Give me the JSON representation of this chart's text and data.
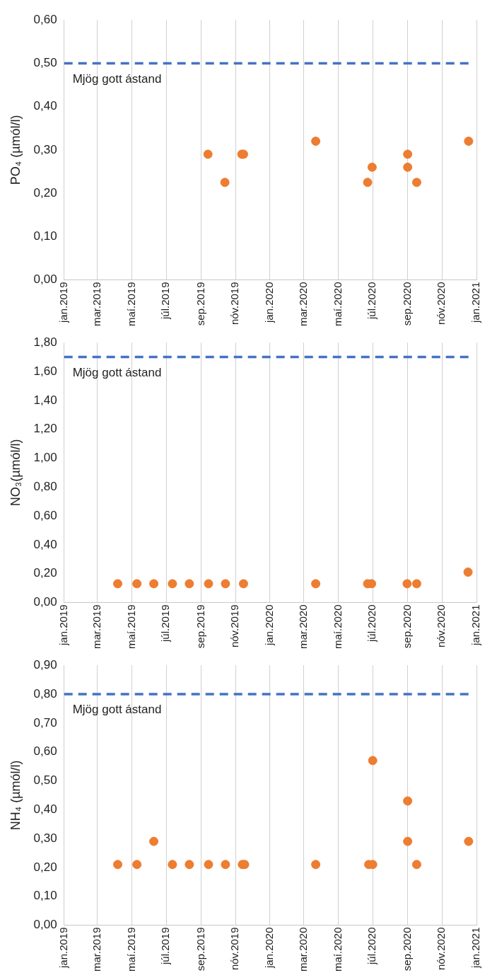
{
  "chart_data": [
    {
      "type": "scatter",
      "ylabel": "PO₄ (µmól/l)",
      "marker": "circle",
      "grid": "x",
      "xlim": [
        "2019-01-01",
        "2021-01-01"
      ],
      "xticks": [
        {
          "value": "2019-01-01",
          "label": "jan.2019"
        },
        {
          "value": "2019-03-01",
          "label": "mar.2019"
        },
        {
          "value": "2019-05-01",
          "label": "maí.2019"
        },
        {
          "value": "2019-07-01",
          "label": "júl.2019"
        },
        {
          "value": "2019-09-01",
          "label": "sep.2019"
        },
        {
          "value": "2019-11-01",
          "label": "nóv.2019"
        },
        {
          "value": "2020-01-01",
          "label": "jan.2020"
        },
        {
          "value": "2020-03-01",
          "label": "mar.2020"
        },
        {
          "value": "2020-05-01",
          "label": "maí.2020"
        },
        {
          "value": "2020-07-01",
          "label": "júl.2020"
        },
        {
          "value": "2020-09-01",
          "label": "sep.2020"
        },
        {
          "value": "2020-11-01",
          "label": "nóv.2020"
        },
        {
          "value": "2021-01-01",
          "label": "jan.2021"
        }
      ],
      "ylim": [
        0,
        0.6
      ],
      "yticks": [
        {
          "value": 0,
          "label": "0,00"
        },
        {
          "value": 0.1,
          "label": "0,10"
        },
        {
          "value": 0.2,
          "label": "0,20"
        },
        {
          "value": 0.3,
          "label": "0,30"
        },
        {
          "value": 0.4,
          "label": "0,40"
        },
        {
          "value": 0.5,
          "label": "0,50"
        },
        {
          "value": 0.6,
          "label": "0,60"
        }
      ],
      "ref_lines": [
        {
          "axis": "y",
          "value": 0.5,
          "label": "Mjög gott ástand",
          "color": "#4472c4",
          "line_style": "dashed"
        }
      ],
      "series": [
        {
          "color": "#ed7d31",
          "x": [
            "2019-09-13",
            "2019-10-13",
            "2019-11-12",
            "2019-11-15",
            "2020-03-22",
            "2020-06-22",
            "2020-06-30",
            "2020-09-01",
            "2020-09-01",
            "2020-09-17",
            "2020-12-18"
          ],
          "values": [
            0.29,
            0.225,
            0.29,
            0.29,
            0.32,
            0.225,
            0.26,
            0.29,
            0.26,
            0.225,
            0.32
          ]
        }
      ]
    },
    {
      "type": "scatter",
      "ylabel": "NO₃(µmól/l)",
      "marker": "circle",
      "grid": "x",
      "xlim": [
        "2019-01-01",
        "2021-01-01"
      ],
      "xticks": [
        {
          "value": "2019-01-01",
          "label": "jan.2019"
        },
        {
          "value": "2019-03-01",
          "label": "mar.2019"
        },
        {
          "value": "2019-05-01",
          "label": "maí.2019"
        },
        {
          "value": "2019-07-01",
          "label": "júl.2019"
        },
        {
          "value": "2019-09-01",
          "label": "sep.2019"
        },
        {
          "value": "2019-11-01",
          "label": "nóv.2019"
        },
        {
          "value": "2020-01-01",
          "label": "jan.2020"
        },
        {
          "value": "2020-03-01",
          "label": "mar.2020"
        },
        {
          "value": "2020-05-01",
          "label": "maí.2020"
        },
        {
          "value": "2020-07-01",
          "label": "júl.2020"
        },
        {
          "value": "2020-09-01",
          "label": "sep.2020"
        },
        {
          "value": "2020-11-01",
          "label": "nóv.2020"
        },
        {
          "value": "2021-01-01",
          "label": "jan.2021"
        }
      ],
      "ylim": [
        0,
        1.8
      ],
      "yticks": [
        {
          "value": 0,
          "label": "0,00"
        },
        {
          "value": 0.2,
          "label": "0,20"
        },
        {
          "value": 0.4,
          "label": "0,40"
        },
        {
          "value": 0.6,
          "label": "0,60"
        },
        {
          "value": 0.8,
          "label": "0,80"
        },
        {
          "value": 1,
          "label": "1,00"
        },
        {
          "value": 1.2,
          "label": "1,20"
        },
        {
          "value": 1.4,
          "label": "1,40"
        },
        {
          "value": 1.6,
          "label": "1,60"
        },
        {
          "value": 1.8,
          "label": "1,80"
        }
      ],
      "ref_lines": [
        {
          "axis": "y",
          "value": 1.7,
          "label": "Mjög gott ástand",
          "color": "#4472c4",
          "line_style": "dashed"
        }
      ],
      "series": [
        {
          "color": "#ed7d31",
          "x": [
            "2019-04-06",
            "2019-05-10",
            "2019-06-09",
            "2019-07-12",
            "2019-08-11",
            "2019-09-14",
            "2019-10-14",
            "2019-11-15",
            "2020-03-22",
            "2020-06-22",
            "2020-06-29",
            "2020-08-31",
            "2020-09-17",
            "2020-12-17"
          ],
          "values": [
            0.13,
            0.13,
            0.13,
            0.13,
            0.13,
            0.13,
            0.13,
            0.13,
            0.13,
            0.13,
            0.13,
            0.13,
            0.13,
            0.21
          ]
        }
      ]
    },
    {
      "type": "scatter",
      "ylabel": "NH₄ (µmól/l)",
      "marker": "circle",
      "grid": "x",
      "xlim": [
        "2019-01-01",
        "2021-01-01"
      ],
      "xticks": [
        {
          "value": "2019-01-01",
          "label": "jan.2019"
        },
        {
          "value": "2019-03-01",
          "label": "mar.2019"
        },
        {
          "value": "2019-05-01",
          "label": "maí.2019"
        },
        {
          "value": "2019-07-01",
          "label": "júl.2019"
        },
        {
          "value": "2019-09-01",
          "label": "sep.2019"
        },
        {
          "value": "2019-11-01",
          "label": "nóv.2019"
        },
        {
          "value": "2020-01-01",
          "label": "jan.2020"
        },
        {
          "value": "2020-03-01",
          "label": "mar.2020"
        },
        {
          "value": "2020-05-01",
          "label": "maí.2020"
        },
        {
          "value": "2020-07-01",
          "label": "júl.2020"
        },
        {
          "value": "2020-09-01",
          "label": "sep.2020"
        },
        {
          "value": "2020-11-01",
          "label": "nóv.2020"
        },
        {
          "value": "2021-01-01",
          "label": "jan.2021"
        }
      ],
      "ylim": [
        0,
        0.9
      ],
      "yticks": [
        {
          "value": 0,
          "label": "0,00"
        },
        {
          "value": 0.1,
          "label": "0,10"
        },
        {
          "value": 0.2,
          "label": "0,20"
        },
        {
          "value": 0.3,
          "label": "0,30"
        },
        {
          "value": 0.4,
          "label": "0,40"
        },
        {
          "value": 0.5,
          "label": "0,50"
        },
        {
          "value": 0.6,
          "label": "0,60"
        },
        {
          "value": 0.7,
          "label": "0,70"
        },
        {
          "value": 0.8,
          "label": "0,80"
        },
        {
          "value": 0.9,
          "label": "0,90"
        }
      ],
      "ref_lines": [
        {
          "axis": "y",
          "value": 0.8,
          "label": "Mjög gott ástand",
          "color": "#4472c4",
          "line_style": "dashed"
        }
      ],
      "series": [
        {
          "color": "#ed7d31",
          "x": [
            "2019-04-06",
            "2019-05-10",
            "2019-06-09",
            "2019-07-12",
            "2019-08-11",
            "2019-09-14",
            "2019-10-14",
            "2019-11-13",
            "2019-11-17",
            "2020-03-22",
            "2020-06-24",
            "2020-07-01",
            "2020-07-01",
            "2020-09-01",
            "2020-09-01",
            "2020-09-17",
            "2020-12-18"
          ],
          "values": [
            0.21,
            0.21,
            0.29,
            0.21,
            0.21,
            0.21,
            0.21,
            0.21,
            0.21,
            0.21,
            0.21,
            0.21,
            0.57,
            0.43,
            0.29,
            0.21,
            0.29
          ]
        }
      ]
    }
  ]
}
